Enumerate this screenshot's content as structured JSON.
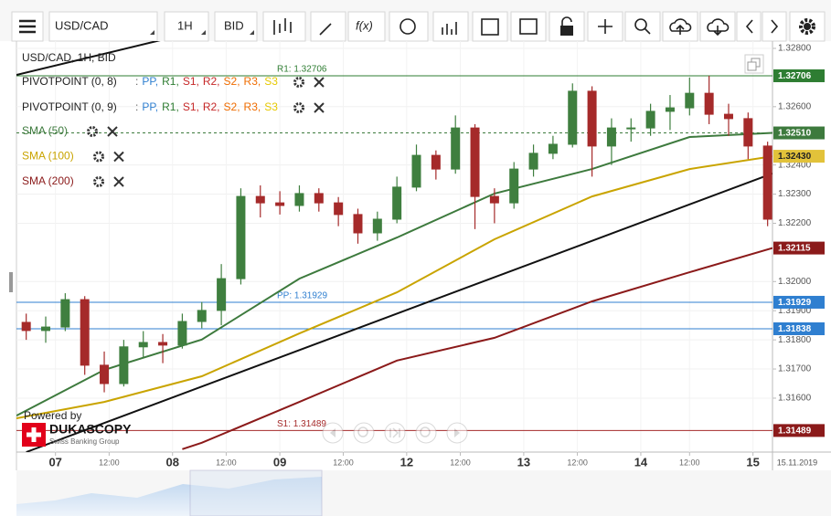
{
  "toolbar": {
    "instrument": "USD/CAD",
    "period": "1H",
    "side": "BID",
    "function_button": "f(x)"
  },
  "legend": {
    "title": "USD/CAD, 1H, BID",
    "pivot_indicators": [
      "PIVOTPOINT (0, 8)",
      "PIVOTPOINT (0, 9)"
    ],
    "pivot_prefix": ":",
    "pivot_items": [
      {
        "text": "PP,",
        "color": "#2f7fd0"
      },
      {
        "text": "R1,",
        "color": "#2e7d32"
      },
      {
        "text": "S1,",
        "color": "#c62828"
      },
      {
        "text": "R2,",
        "color": "#c62828"
      },
      {
        "text": "S2,",
        "color": "#ef6c00"
      },
      {
        "text": "R3,",
        "color": "#ef6c00"
      },
      {
        "text": "S3",
        "color": "#e6c800"
      }
    ],
    "sma": [
      {
        "text": "SMA (50)",
        "color": "#3d7a3d"
      },
      {
        "text": "SMA (100)",
        "color": "#c9a400"
      },
      {
        "text": "SMA (200)",
        "color": "#8b1a1a"
      }
    ]
  },
  "branding": {
    "powered": "Powered by",
    "name": "DUKASCOPY",
    "tagline": "Swiss Banking Group"
  },
  "chart_data": {
    "type": "candlestick",
    "up_color": "#3f7f3f",
    "down_color": "#a52a2a",
    "xlim": [
      -8,
      147
    ],
    "ylim": [
      1.31415,
      1.32825
    ],
    "grid": true,
    "xticks": [
      {
        "value": 0,
        "label": "07"
      },
      {
        "value": 11,
        "label": "12:00"
      },
      {
        "value": 24,
        "label": "08"
      },
      {
        "value": 35,
        "label": "12:00"
      },
      {
        "value": 46,
        "label": "09"
      },
      {
        "value": 59,
        "label": "12:00"
      },
      {
        "value": 72,
        "label": "12"
      },
      {
        "value": 83,
        "label": "12:00"
      },
      {
        "value": 96,
        "label": "13"
      },
      {
        "value": 107,
        "label": "12:00"
      },
      {
        "value": 120,
        "label": "14"
      },
      {
        "value": 130,
        "label": "12:00"
      },
      {
        "value": 143,
        "label": "15"
      }
    ],
    "date_label": "15.11.2019",
    "yticks": [
      {
        "value": 1.328,
        "label": "1.32800"
      },
      {
        "value": 1.326,
        "label": "1.32600"
      },
      {
        "value": 1.324,
        "label": "1.32400"
      },
      {
        "value": 1.323,
        "label": "1.32300"
      },
      {
        "value": 1.322,
        "label": "1.32200"
      },
      {
        "value": 1.32,
        "label": "1.32000"
      },
      {
        "value": 1.319,
        "label": "1.31900"
      },
      {
        "value": 1.318,
        "label": "1.31800"
      },
      {
        "value": 1.317,
        "label": "1.31700"
      },
      {
        "value": 1.316,
        "label": "1.31600"
      }
    ],
    "x": [
      -6,
      -2,
      2,
      6,
      10,
      14,
      18,
      22,
      26,
      30,
      34,
      38,
      42,
      46,
      50,
      54,
      58,
      62,
      66,
      70,
      74,
      78,
      82,
      86,
      90,
      94,
      98,
      102,
      106,
      110,
      114,
      118,
      122,
      126,
      130,
      134,
      138,
      142,
      146
    ],
    "candles": [
      [
        1.3186,
        1.3189,
        1.318,
        1.31832
      ],
      [
        1.31832,
        1.3188,
        1.3179,
        1.31844
      ],
      [
        1.31844,
        1.3196,
        1.3183,
        1.31938
      ],
      [
        1.31938,
        1.3195,
        1.3168,
        1.31713
      ],
      [
        1.31713,
        1.3176,
        1.3162,
        1.3165
      ],
      [
        1.3165,
        1.318,
        1.3164,
        1.31776
      ],
      [
        1.31776,
        1.3183,
        1.3174,
        1.31791
      ],
      [
        1.31791,
        1.3182,
        1.3172,
        1.31782
      ],
      [
        1.31782,
        1.3189,
        1.3177,
        1.31863
      ],
      [
        1.31863,
        1.3193,
        1.3184,
        1.31901
      ],
      [
        1.31901,
        1.3206,
        1.3185,
        1.3201
      ],
      [
        1.3201,
        1.3232,
        1.3199,
        1.32292
      ],
      [
        1.32292,
        1.3233,
        1.3222,
        1.3227
      ],
      [
        1.3227,
        1.3231,
        1.3223,
        1.32261
      ],
      [
        1.32261,
        1.3233,
        1.3224,
        1.32302
      ],
      [
        1.32302,
        1.3232,
        1.3224,
        1.3227
      ],
      [
        1.3227,
        1.3229,
        1.3219,
        1.3223
      ],
      [
        1.3223,
        1.3225,
        1.3213,
        1.32167
      ],
      [
        1.32167,
        1.3224,
        1.3214,
        1.32214
      ],
      [
        1.32214,
        1.3236,
        1.322,
        1.32324
      ],
      [
        1.32324,
        1.3247,
        1.3231,
        1.32433
      ],
      [
        1.32433,
        1.3245,
        1.3235,
        1.32386
      ],
      [
        1.32386,
        1.3257,
        1.3237,
        1.32527
      ],
      [
        1.32527,
        1.3254,
        1.3218,
        1.32292
      ],
      [
        1.32292,
        1.3232,
        1.322,
        1.3227
      ],
      [
        1.3227,
        1.3241,
        1.3225,
        1.32386
      ],
      [
        1.32386,
        1.3247,
        1.3236,
        1.3244
      ],
      [
        1.3244,
        1.325,
        1.3242,
        1.32471
      ],
      [
        1.32471,
        1.3268,
        1.3246,
        1.32653
      ],
      [
        1.32653,
        1.3267,
        1.3236,
        1.32465
      ],
      [
        1.32465,
        1.3256,
        1.324,
        1.32527
      ],
      [
        1.32527,
        1.3256,
        1.3248,
        1.32527
      ],
      [
        1.32527,
        1.3261,
        1.325,
        1.32584
      ],
      [
        1.32584,
        1.3264,
        1.3252,
        1.32596
      ],
      [
        1.32596,
        1.327,
        1.3257,
        1.32646
      ],
      [
        1.32646,
        1.32706,
        1.3254,
        1.32574
      ],
      [
        1.32574,
        1.3261,
        1.325,
        1.32559
      ],
      [
        1.32559,
        1.3258,
        1.3242,
        1.32465
      ],
      [
        1.32465,
        1.3248,
        1.3219,
        1.32214
      ]
    ],
    "series": [
      {
        "name": "SMA (50)",
        "color": "#3d7a3d",
        "x": [
          -8,
          10,
          30,
          50,
          70,
          90,
          110,
          130,
          147
        ],
        "values": [
          1.3154,
          1.31697,
          1.31801,
          1.3201,
          1.32151,
          1.32302,
          1.32386,
          1.32496,
          1.3251
        ]
      },
      {
        "name": "SMA (100)",
        "color": "#c9a400",
        "x": [
          -8,
          10,
          30,
          50,
          70,
          90,
          110,
          130,
          147
        ],
        "values": [
          1.31531,
          1.31587,
          1.31675,
          1.31822,
          1.31963,
          1.32145,
          1.32292,
          1.32386,
          1.3243
        ]
      },
      {
        "name": "SMA (200)",
        "color": "#8b1a1a",
        "x": [
          26,
          30,
          50,
          70,
          90,
          110,
          130,
          147
        ],
        "values": [
          1.31425,
          1.31447,
          1.31587,
          1.31729,
          1.31807,
          1.31932,
          1.32032,
          1.32115
        ]
      }
    ],
    "trendlines": [
      {
        "color": "#111111",
        "x": [
          -6,
          147
        ],
        "values": [
          1.31415,
          1.32371
        ]
      },
      {
        "color": "#111111",
        "x": [
          -8,
          22
        ],
        "values": [
          1.32709,
          1.3283
        ]
      }
    ],
    "pivot_lines": [
      {
        "value": 1.32706,
        "label": "R1: 1.32706",
        "color": "#2e7d32"
      },
      {
        "value": 1.31929,
        "label": "PP: 1.31929",
        "color": "#2f7fd0"
      },
      {
        "value": 1.31838,
        "color": "#2f7fd0"
      },
      {
        "value": 1.31489,
        "label": "S1: 1.31489",
        "color": "#a52a2a"
      }
    ],
    "price_markers": [
      {
        "value": 1.32706,
        "label": "1.32706",
        "color": "#2e7d32",
        "text_color": "#ffffff"
      },
      {
        "value": 1.3251,
        "label": "1.32510",
        "color": "#3d7a3d",
        "text_color": "#ffffff",
        "dashed": true
      },
      {
        "value": 1.3243,
        "label": "1.32430",
        "color": "#e2c23a",
        "text_color": "#222222"
      },
      {
        "value": 1.32115,
        "label": "1.32115",
        "color": "#8b1a1a",
        "text_color": "#ffffff"
      },
      {
        "value": 1.31929,
        "label": "1.31929",
        "color": "#2f7fd0",
        "text_color": "#ffffff"
      },
      {
        "value": 1.31838,
        "label": "1.31838",
        "color": "#2f7fd0",
        "text_color": "#ffffff"
      },
      {
        "value": 1.31489,
        "label": "1.31489",
        "color": "#8b1a1a",
        "text_color": "#ffffff"
      }
    ]
  }
}
